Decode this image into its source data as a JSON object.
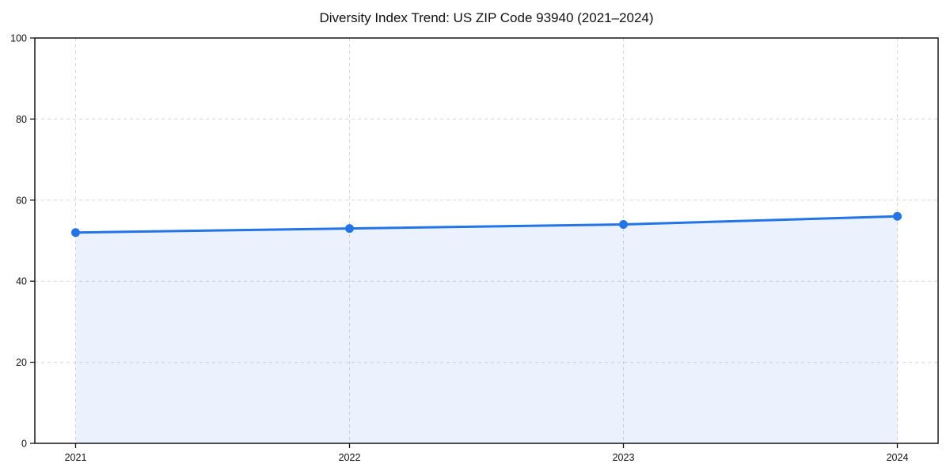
{
  "chart_data": {
    "type": "area",
    "title": "Diversity Index Trend: US ZIP Code 93940 (2021–2024)",
    "categories": [
      "2021",
      "2022",
      "2023",
      "2024"
    ],
    "series": [
      {
        "name": "Diversity Index",
        "values": [
          52,
          53,
          54,
          56
        ]
      }
    ],
    "xlabel": "",
    "ylabel": "",
    "ylim": [
      0,
      100
    ],
    "yticks": [
      0,
      20,
      40,
      60,
      80,
      100
    ],
    "grid": true,
    "grid_style": "dashed",
    "legend": "none",
    "marker": "circle",
    "line_color": "#2274e8",
    "fill_color": "#2274e8",
    "fill_opacity": 0.09,
    "grid_color": "#d8d8d8",
    "axis_color": "#161616",
    "text_color": "#111111",
    "background_color": "#ffffff"
  }
}
